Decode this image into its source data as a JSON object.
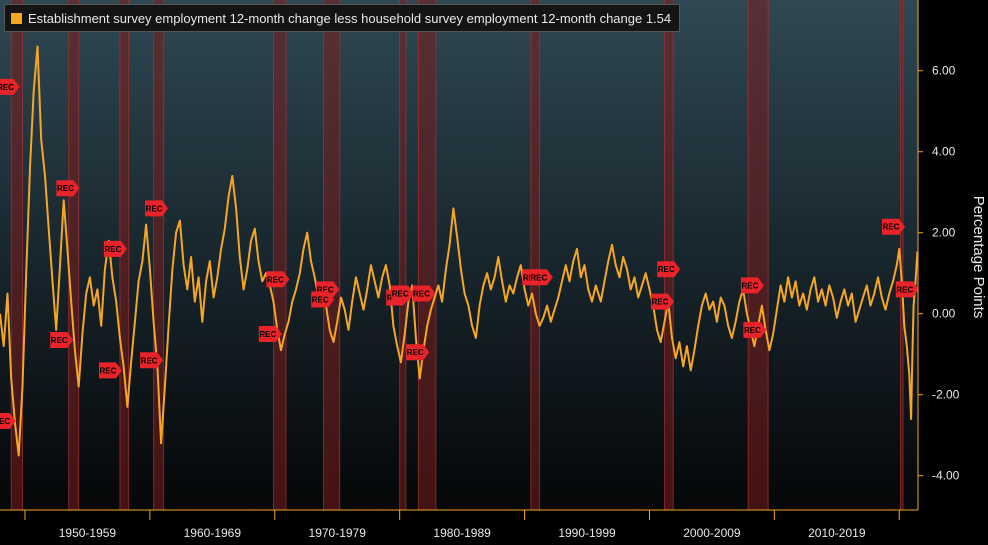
{
  "chart_data": {
    "type": "line",
    "title": "",
    "xlabel": "",
    "ylabel": "Percentage Points",
    "ylim": [
      -4.6,
      7.5
    ],
    "xlim": [
      1948.0,
      2021.5
    ],
    "y_ticks": [
      6.0,
      4.0,
      2.0,
      0.0,
      -2.0,
      -4.0
    ],
    "y_tick_labels": [
      "6.00",
      "4.00",
      "2.00",
      "0.00",
      "-2.00",
      "-4.00"
    ],
    "x_ticks": [
      1950,
      1960,
      1970,
      1980,
      1990,
      2000,
      2010,
      2020
    ],
    "decade_labels": [
      {
        "label": "1950-1959",
        "center": 1955
      },
      {
        "label": "1960-1969",
        "center": 1965
      },
      {
        "label": "1970-1979",
        "center": 1975
      },
      {
        "label": "1980-1989",
        "center": 1985
      },
      {
        "label": "1990-1999",
        "center": 1995
      },
      {
        "label": "2000-2009",
        "center": 2005
      },
      {
        "label": "2010-2019",
        "center": 2015
      }
    ],
    "series": [
      {
        "name": "Establishment survey employment 12-month change less household survey employment 12-month change",
        "last_value": "1.54",
        "color": "#f5a623",
        "points": [
          [
            1948.0,
            0.0
          ],
          [
            1948.3,
            -0.8
          ],
          [
            1948.6,
            0.5
          ],
          [
            1948.9,
            -1.6
          ],
          [
            1949.2,
            -2.7
          ],
          [
            1949.5,
            -3.5
          ],
          [
            1949.8,
            -1.8
          ],
          [
            1950.1,
            1.0
          ],
          [
            1950.4,
            3.6
          ],
          [
            1950.7,
            5.5
          ],
          [
            1951.0,
            6.6
          ],
          [
            1951.3,
            4.3
          ],
          [
            1951.6,
            3.4
          ],
          [
            1951.9,
            2.1
          ],
          [
            1952.2,
            0.8
          ],
          [
            1952.5,
            -0.4
          ],
          [
            1952.8,
            1.2
          ],
          [
            1953.1,
            2.8
          ],
          [
            1953.4,
            1.6
          ],
          [
            1953.7,
            0.3
          ],
          [
            1954.0,
            -0.9
          ],
          [
            1954.3,
            -1.8
          ],
          [
            1954.6,
            -0.5
          ],
          [
            1954.9,
            0.5
          ],
          [
            1955.2,
            0.9
          ],
          [
            1955.5,
            0.2
          ],
          [
            1955.8,
            0.6
          ],
          [
            1956.1,
            -0.3
          ],
          [
            1956.4,
            1.1
          ],
          [
            1956.7,
            1.8
          ],
          [
            1957.0,
            0.9
          ],
          [
            1957.3,
            0.3
          ],
          [
            1957.6,
            -0.6
          ],
          [
            1957.9,
            -1.3
          ],
          [
            1958.2,
            -2.3
          ],
          [
            1958.5,
            -1.2
          ],
          [
            1958.8,
            -0.2
          ],
          [
            1959.1,
            0.8
          ],
          [
            1959.4,
            1.3
          ],
          [
            1959.7,
            2.2
          ],
          [
            1960.0,
            1.1
          ],
          [
            1960.3,
            -0.2
          ],
          [
            1960.6,
            -1.3
          ],
          [
            1960.9,
            -3.2
          ],
          [
            1961.2,
            -1.8
          ],
          [
            1961.5,
            -0.3
          ],
          [
            1961.8,
            1.1
          ],
          [
            1962.1,
            2.0
          ],
          [
            1962.4,
            2.3
          ],
          [
            1962.7,
            1.2
          ],
          [
            1963.0,
            0.6
          ],
          [
            1963.3,
            1.4
          ],
          [
            1963.6,
            0.3
          ],
          [
            1963.9,
            0.9
          ],
          [
            1964.2,
            -0.2
          ],
          [
            1964.5,
            0.8
          ],
          [
            1964.8,
            1.3
          ],
          [
            1965.1,
            0.4
          ],
          [
            1965.4,
            0.9
          ],
          [
            1965.7,
            1.6
          ],
          [
            1966.0,
            2.1
          ],
          [
            1966.3,
            2.9
          ],
          [
            1966.6,
            3.4
          ],
          [
            1966.9,
            2.6
          ],
          [
            1967.2,
            1.4
          ],
          [
            1967.5,
            0.6
          ],
          [
            1967.8,
            1.1
          ],
          [
            1968.1,
            1.8
          ],
          [
            1968.4,
            2.1
          ],
          [
            1968.7,
            1.3
          ],
          [
            1969.0,
            0.8
          ],
          [
            1969.3,
            1.0
          ],
          [
            1969.6,
            0.7
          ],
          [
            1969.9,
            0.3
          ],
          [
            1970.2,
            -0.4
          ],
          [
            1970.5,
            -0.9
          ],
          [
            1970.8,
            -0.5
          ],
          [
            1971.1,
            -0.2
          ],
          [
            1971.4,
            0.3
          ],
          [
            1971.7,
            0.6
          ],
          [
            1972.0,
            1.0
          ],
          [
            1972.3,
            1.6
          ],
          [
            1972.6,
            2.0
          ],
          [
            1972.9,
            1.3
          ],
          [
            1973.2,
            0.9
          ],
          [
            1973.5,
            0.4
          ],
          [
            1973.8,
            0.7
          ],
          [
            1974.1,
            0.2
          ],
          [
            1974.4,
            -0.4
          ],
          [
            1974.7,
            -0.7
          ],
          [
            1975.0,
            -0.2
          ],
          [
            1975.3,
            0.4
          ],
          [
            1975.6,
            0.1
          ],
          [
            1975.9,
            -0.4
          ],
          [
            1976.2,
            0.3
          ],
          [
            1976.5,
            0.9
          ],
          [
            1976.8,
            0.5
          ],
          [
            1977.1,
            0.1
          ],
          [
            1977.4,
            0.6
          ],
          [
            1977.7,
            1.2
          ],
          [
            1978.0,
            0.8
          ],
          [
            1978.3,
            0.4
          ],
          [
            1978.6,
            0.9
          ],
          [
            1978.9,
            1.2
          ],
          [
            1979.2,
            0.7
          ],
          [
            1979.5,
            -0.3
          ],
          [
            1979.8,
            -0.8
          ],
          [
            1980.1,
            -1.2
          ],
          [
            1980.4,
            -0.5
          ],
          [
            1980.7,
            0.3
          ],
          [
            1981.0,
            0.7
          ],
          [
            1981.3,
            -0.6
          ],
          [
            1981.6,
            -1.6
          ],
          [
            1981.9,
            -0.9
          ],
          [
            1982.2,
            -0.3
          ],
          [
            1982.5,
            0.1
          ],
          [
            1982.8,
            0.4
          ],
          [
            1983.1,
            0.7
          ],
          [
            1983.4,
            0.3
          ],
          [
            1983.7,
            1.1
          ],
          [
            1984.0,
            1.7
          ],
          [
            1984.3,
            2.6
          ],
          [
            1984.6,
            1.9
          ],
          [
            1984.9,
            1.1
          ],
          [
            1985.2,
            0.5
          ],
          [
            1985.5,
            0.2
          ],
          [
            1985.8,
            -0.3
          ],
          [
            1986.1,
            -0.6
          ],
          [
            1986.4,
            0.2
          ],
          [
            1986.7,
            0.7
          ],
          [
            1987.0,
            1.0
          ],
          [
            1987.3,
            0.6
          ],
          [
            1987.6,
            0.9
          ],
          [
            1987.9,
            1.4
          ],
          [
            1988.2,
            0.8
          ],
          [
            1988.5,
            0.3
          ],
          [
            1988.8,
            0.7
          ],
          [
            1989.1,
            0.5
          ],
          [
            1989.4,
            0.9
          ],
          [
            1989.7,
            1.2
          ],
          [
            1990.0,
            0.6
          ],
          [
            1990.3,
            0.2
          ],
          [
            1990.6,
            0.5
          ],
          [
            1990.9,
            0.0
          ],
          [
            1991.2,
            -0.3
          ],
          [
            1991.5,
            -0.1
          ],
          [
            1991.8,
            0.2
          ],
          [
            1992.1,
            -0.2
          ],
          [
            1992.4,
            0.1
          ],
          [
            1992.7,
            0.4
          ],
          [
            1993.0,
            0.8
          ],
          [
            1993.3,
            1.2
          ],
          [
            1993.6,
            0.8
          ],
          [
            1993.9,
            1.3
          ],
          [
            1994.2,
            1.6
          ],
          [
            1994.5,
            0.9
          ],
          [
            1994.8,
            1.2
          ],
          [
            1995.1,
            0.6
          ],
          [
            1995.4,
            0.3
          ],
          [
            1995.7,
            0.7
          ],
          [
            1996.1,
            0.3
          ],
          [
            1996.4,
            0.8
          ],
          [
            1996.7,
            1.3
          ],
          [
            1997.0,
            1.7
          ],
          [
            1997.3,
            1.2
          ],
          [
            1997.6,
            0.9
          ],
          [
            1997.9,
            1.4
          ],
          [
            1998.2,
            1.1
          ],
          [
            1998.5,
            0.6
          ],
          [
            1998.8,
            0.9
          ],
          [
            1999.1,
            0.4
          ],
          [
            1999.4,
            0.7
          ],
          [
            1999.7,
            1.0
          ],
          [
            2000.0,
            0.6
          ],
          [
            2000.3,
            0.2
          ],
          [
            2000.6,
            -0.4
          ],
          [
            2000.9,
            -0.7
          ],
          [
            2001.2,
            -0.2
          ],
          [
            2001.5,
            0.3
          ],
          [
            2001.8,
            -0.6
          ],
          [
            2002.1,
            -1.1
          ],
          [
            2002.4,
            -0.7
          ],
          [
            2002.7,
            -1.3
          ],
          [
            2003.0,
            -0.8
          ],
          [
            2003.3,
            -1.4
          ],
          [
            2003.6,
            -0.9
          ],
          [
            2003.9,
            -0.3
          ],
          [
            2004.2,
            0.2
          ],
          [
            2004.5,
            0.5
          ],
          [
            2004.8,
            0.1
          ],
          [
            2005.1,
            0.3
          ],
          [
            2005.4,
            -0.2
          ],
          [
            2005.7,
            0.4
          ],
          [
            2006.0,
            0.2
          ],
          [
            2006.3,
            -0.3
          ],
          [
            2006.6,
            -0.6
          ],
          [
            2006.9,
            -0.2
          ],
          [
            2007.2,
            0.3
          ],
          [
            2007.5,
            0.6
          ],
          [
            2007.8,
            0.0
          ],
          [
            2008.1,
            -0.4
          ],
          [
            2008.4,
            -0.8
          ],
          [
            2008.7,
            -0.3
          ],
          [
            2009.0,
            0.2
          ],
          [
            2009.3,
            -0.4
          ],
          [
            2009.6,
            -0.9
          ],
          [
            2009.9,
            -0.5
          ],
          [
            2010.2,
            0.1
          ],
          [
            2010.5,
            0.7
          ],
          [
            2010.8,
            0.3
          ],
          [
            2011.1,
            0.9
          ],
          [
            2011.4,
            0.4
          ],
          [
            2011.7,
            0.8
          ],
          [
            2012.0,
            0.2
          ],
          [
            2012.3,
            0.5
          ],
          [
            2012.6,
            0.1
          ],
          [
            2012.9,
            0.6
          ],
          [
            2013.2,
            0.9
          ],
          [
            2013.5,
            0.3
          ],
          [
            2013.8,
            0.6
          ],
          [
            2014.1,
            0.2
          ],
          [
            2014.4,
            0.7
          ],
          [
            2014.7,
            0.4
          ],
          [
            2015.0,
            -0.1
          ],
          [
            2015.3,
            0.3
          ],
          [
            2015.6,
            0.6
          ],
          [
            2015.9,
            0.2
          ],
          [
            2016.2,
            0.5
          ],
          [
            2016.5,
            -0.2
          ],
          [
            2016.8,
            0.1
          ],
          [
            2017.1,
            0.4
          ],
          [
            2017.4,
            0.7
          ],
          [
            2017.7,
            0.2
          ],
          [
            2018.0,
            0.5
          ],
          [
            2018.3,
            0.9
          ],
          [
            2018.6,
            0.4
          ],
          [
            2018.9,
            0.1
          ],
          [
            2019.2,
            0.5
          ],
          [
            2019.5,
            0.8
          ],
          [
            2019.8,
            1.2
          ],
          [
            2020.0,
            1.6
          ],
          [
            2020.2,
            0.8
          ],
          [
            2020.4,
            -0.3
          ],
          [
            2020.6,
            -0.8
          ],
          [
            2020.8,
            -1.5
          ],
          [
            2020.95,
            -2.6
          ],
          [
            2021.05,
            -1.0
          ],
          [
            2021.15,
            0.2
          ],
          [
            2021.25,
            0.6
          ],
          [
            2021.35,
            1.0
          ],
          [
            2021.45,
            1.54
          ]
        ]
      }
    ],
    "recessions": [
      [
        1948.9,
        1949.8
      ],
      [
        1953.5,
        1954.3
      ],
      [
        1957.6,
        1958.3
      ],
      [
        1960.3,
        1961.1
      ],
      [
        1969.9,
        1970.9
      ],
      [
        1973.9,
        1975.2
      ],
      [
        1980.0,
        1980.5
      ],
      [
        1981.5,
        1982.9
      ],
      [
        1990.5,
        1991.2
      ],
      [
        2001.2,
        2001.9
      ],
      [
        2007.9,
        2009.5
      ],
      [
        2020.1,
        2020.3
      ]
    ],
    "annotations": [
      {
        "text": "REC",
        "x": 1948.6,
        "y": 5.6
      },
      {
        "text": "REC",
        "x": 1948.3,
        "y": -2.65
      },
      {
        "text": "REC",
        "x": 1953.4,
        "y": 3.1
      },
      {
        "text": "REC",
        "x": 1952.9,
        "y": -0.65
      },
      {
        "text": "REC",
        "x": 1957.2,
        "y": 1.6
      },
      {
        "text": "REC",
        "x": 1956.8,
        "y": -1.4
      },
      {
        "text": "REC",
        "x": 1960.5,
        "y": 2.6
      },
      {
        "text": "REC",
        "x": 1960.1,
        "y": -1.15
      },
      {
        "text": "REC",
        "x": 1970.2,
        "y": 0.85
      },
      {
        "text": "REC",
        "x": 1969.6,
        "y": -0.5
      },
      {
        "text": "REC",
        "x": 1974.2,
        "y": 0.6
      },
      {
        "text": "REC",
        "x": 1973.8,
        "y": 0.35
      },
      {
        "text": "REC",
        "x": 1979.8,
        "y": 0.4
      },
      {
        "text": "REC",
        "x": 1980.2,
        "y": 0.5
      },
      {
        "text": "REC",
        "x": 1981.9,
        "y": 0.5
      },
      {
        "text": "REC",
        "x": 1981.4,
        "y": -0.95
      },
      {
        "text": "REC",
        "x": 1990.7,
        "y": 0.9
      },
      {
        "text": "REC",
        "x": 1991.3,
        "y": 0.9
      },
      {
        "text": "REC",
        "x": 2001.5,
        "y": 1.1
      },
      {
        "text": "REC",
        "x": 2001.0,
        "y": 0.3
      },
      {
        "text": "REC",
        "x": 2008.2,
        "y": 0.7
      },
      {
        "text": "REC",
        "x": 2008.4,
        "y": -0.4
      },
      {
        "text": "REC",
        "x": 2019.5,
        "y": 2.15
      },
      {
        "text": "REC",
        "x": 2020.6,
        "y": 0.6
      }
    ]
  }
}
